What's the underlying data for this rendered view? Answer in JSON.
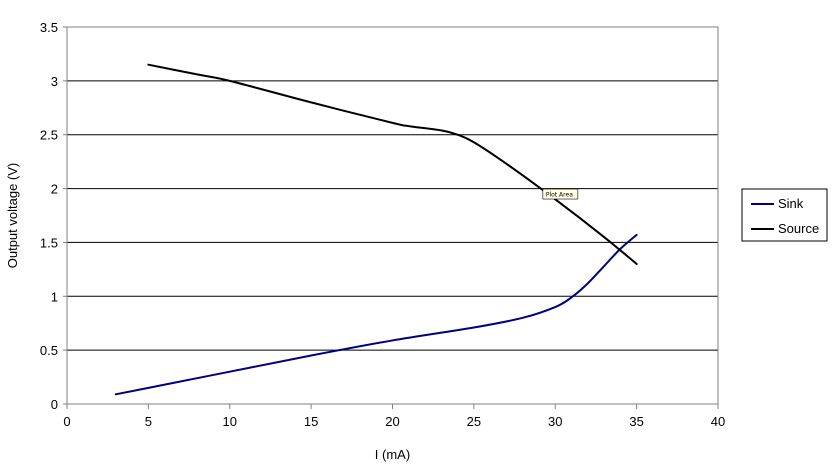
{
  "chart_data": {
    "type": "line",
    "title": "",
    "xlabel": "I (mA)",
    "ylabel": "Output voltage (V)",
    "xlim": [
      0,
      40
    ],
    "ylim": [
      0,
      3.5
    ],
    "x_ticks": [
      0,
      5,
      10,
      15,
      20,
      25,
      30,
      35,
      40
    ],
    "y_ticks": [
      0,
      0.5,
      1,
      1.5,
      2,
      2.5,
      3,
      3.5
    ],
    "x_tick_labels": [
      "0",
      "5",
      "10",
      "15",
      "20",
      "25",
      "30",
      "35",
      "40"
    ],
    "y_tick_labels": [
      "0",
      "0.5",
      "1",
      "1.5",
      "2",
      "2.5",
      "3",
      "3.5"
    ],
    "grid": "horizontal",
    "legend_position": "right",
    "series": [
      {
        "name": "Sink",
        "color": "#000080",
        "x": [
          3,
          5,
          10,
          15,
          20,
          25,
          28,
          30,
          31,
          32,
          33,
          34,
          35
        ],
        "y": [
          0.09,
          0.15,
          0.3,
          0.45,
          0.59,
          0.71,
          0.8,
          0.9,
          0.99,
          1.12,
          1.28,
          1.44,
          1.57
        ]
      },
      {
        "name": "Source",
        "color": "#000000",
        "x": [
          5,
          8,
          10,
          15,
          20,
          21,
          23,
          24,
          25,
          27,
          30,
          33,
          35
        ],
        "y": [
          3.15,
          3.06,
          3.0,
          2.8,
          2.61,
          2.58,
          2.54,
          2.5,
          2.43,
          2.23,
          1.9,
          1.55,
          1.3
        ]
      }
    ],
    "annotation": "Plot Area"
  }
}
